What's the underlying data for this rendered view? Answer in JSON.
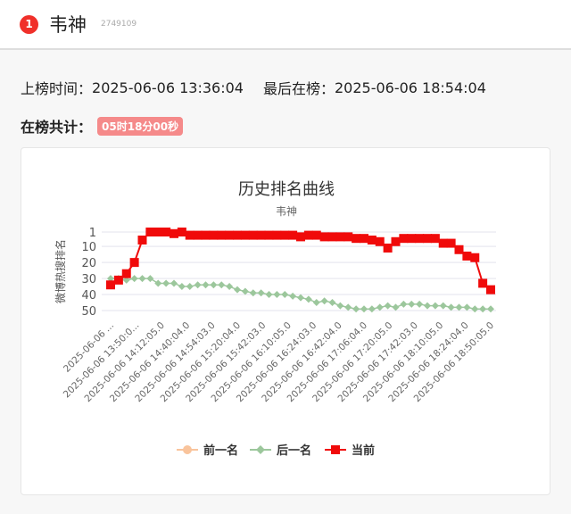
{
  "header": {
    "rank": "1",
    "title": "韦神",
    "id": "2749109"
  },
  "info": {
    "start_label": "上榜时间：",
    "start_value": "2025-06-06 13:36:04",
    "last_label": "最后在榜：",
    "last_value": "2025-06-06 18:54:04",
    "total_label": "在榜共计：",
    "total_value": "05时18分00秒"
  },
  "chart_data": {
    "type": "line",
    "title": "历史排名曲线",
    "subtitle": "韦神",
    "ylabel": "微博热搜排名",
    "y_inverted": true,
    "ylim": [
      1,
      50
    ],
    "y_ticks": [
      "1",
      "10",
      "20",
      "30",
      "40",
      "50"
    ],
    "grid": "horizontal",
    "x_tick_labels": [
      "2025-06-06 ...",
      "2025-06-06 13:50:0...",
      "2025-06-06 14:12:05.0",
      "2025-06-06 14:40:04.0",
      "2025-06-06 14:54:03.0",
      "2025-06-06 15:20:04.0",
      "2025-06-06 15:42:03.0",
      "2025-06-06 16:10:05.0",
      "2025-06-06 16:24:03.0",
      "2025-06-06 16:42:04.0",
      "2025-06-06 17:06:04.0",
      "2025-06-06 17:20:05.0",
      "2025-06-06 17:42:03.0",
      "2025-06-06 18:10:05.0",
      "2025-06-06 18:24:04.0",
      "2025-06-06 18:50:05.0"
    ],
    "legend_position": "bottom",
    "series": [
      {
        "name": "前一名",
        "color": "#f9c49c",
        "values": []
      },
      {
        "name": "后一名",
        "color": "#9cc79c",
        "values": [
          30,
          30,
          31,
          30,
          30,
          30,
          33,
          33,
          33,
          35,
          35,
          34,
          34,
          34,
          34,
          35,
          37,
          38,
          39,
          39,
          40,
          40,
          40,
          41,
          42,
          43,
          45,
          44,
          45,
          47,
          48,
          49,
          49,
          49,
          48,
          47,
          48,
          46,
          46,
          46,
          47,
          47,
          47,
          48,
          48,
          48,
          49,
          49,
          49
        ]
      },
      {
        "name": "当前",
        "color": "#f00a0a",
        "values": [
          34,
          31,
          27,
          20,
          6,
          1,
          1,
          1,
          2,
          1,
          3,
          3,
          3,
          3,
          3,
          3,
          3,
          3,
          3,
          3,
          3,
          3,
          3,
          3,
          4,
          3,
          3,
          4,
          4,
          4,
          4,
          5,
          5,
          6,
          7,
          11,
          7,
          5,
          5,
          5,
          5,
          5,
          8,
          8,
          12,
          16,
          17,
          33,
          37
        ]
      }
    ]
  }
}
